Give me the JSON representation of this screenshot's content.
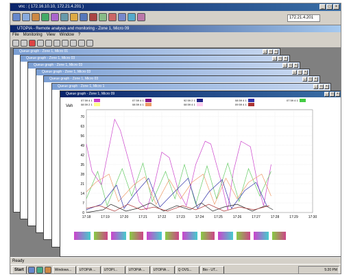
{
  "outer_window": {
    "title": "vnc : ( 172.16.10.10, 172.21.4.201 )",
    "ip": "172.21.4.201"
  },
  "app": {
    "title": "UTOPIA - Remote analysis and monitoring - Zone 1, Micro 09",
    "menu": [
      "File",
      "Monitoring",
      "View",
      "Window",
      "?"
    ]
  },
  "stacked_windows": [
    "Queue graph - Zone 1, Micro 01",
    "Queue graph - Zone 1, Micro 03",
    "Queue graph - Zone 1, Micro 03",
    "Queue graph - Zone 1, Micro 03",
    "Queue graph - Zone 1, Micro 03",
    "Queue graph - Zone 1, Micro 1"
  ],
  "front_window": {
    "title": "Queue graph - Zone 1, Micro 09"
  },
  "legend": [
    {
      "text": "07 59 4 1",
      "color": "#cc44cc"
    },
    {
      "text": "08 59 2 1",
      "color": "#ffff88"
    },
    {
      "text": "07 59 4 1",
      "color": "#881188"
    },
    {
      "text": "08 59 4 1",
      "color": "#ee9966"
    },
    {
      "text": "92 59 2 1",
      "color": "#222288"
    },
    {
      "text": "08 59 4 1",
      "color": "#ffccee"
    },
    {
      "text": "08 59 4 1",
      "color": "#3333aa"
    },
    {
      "text": "09 59 4 1",
      "color": "#aa3333"
    },
    {
      "text": "07 59 4 1",
      "color": "#44cc44"
    }
  ],
  "chart_data": {
    "type": "line",
    "ylabel": "Veh",
    "ylim": [
      0,
      75
    ],
    "yticks": [
      0,
      7,
      14,
      21,
      28,
      35,
      42,
      49,
      56,
      63,
      70
    ],
    "xticks": [
      "17:18",
      "17:19",
      "17:20",
      "17:21",
      "17:22",
      "17:23",
      "17:24",
      "17:25",
      "17:26",
      "17:27",
      "17:28",
      "17:29",
      "17:30"
    ],
    "grid": true,
    "series": [
      {
        "color": "#cc44cc",
        "x": [
          0,
          0.3,
          0.8,
          1.5,
          1.8,
          2.3,
          2.8,
          3.2,
          3.6,
          4,
          4.4,
          4.9,
          5.3,
          5.8,
          6.3,
          6.6,
          7.1,
          7.5,
          7.8,
          8.2,
          8.7,
          9.1,
          9.4,
          9.8
        ],
        "y": [
          50,
          30,
          20,
          68,
          60,
          35,
          8,
          2,
          20,
          44,
          40,
          15,
          5,
          35,
          52,
          50,
          25,
          2,
          30,
          52,
          48,
          20,
          5,
          35
        ]
      },
      {
        "color": "#66cc66",
        "x": [
          0,
          0.6,
          1.1,
          1.9,
          2.4,
          3.0,
          3.5,
          4.2,
          4.7,
          5.2,
          5.8,
          6.4,
          6.9,
          7.5,
          8.1,
          8.6,
          9.2,
          9.8
        ],
        "y": [
          10,
          30,
          5,
          32,
          12,
          36,
          8,
          30,
          10,
          35,
          6,
          34,
          10,
          36,
          8,
          32,
          12,
          30
        ]
      },
      {
        "color": "#ee9966",
        "x": [
          0,
          0.5,
          1.2,
          1.7,
          2.5,
          3.1,
          3.7,
          4.4,
          5.0,
          5.6,
          6.2,
          6.8,
          7.4,
          8.0,
          8.6,
          9.3,
          9.8
        ],
        "y": [
          15,
          22,
          28,
          8,
          20,
          26,
          6,
          24,
          10,
          22,
          28,
          6,
          25,
          10,
          22,
          28,
          12
        ]
      },
      {
        "color": "#3333aa",
        "x": [
          0,
          0.8,
          1.6,
          2.0,
          2.6,
          3.3,
          3.9,
          4.6,
          5.4,
          5.9,
          6.5,
          7.2,
          7.7,
          8.4,
          9.0,
          9.6
        ],
        "y": [
          2,
          6,
          20,
          3,
          14,
          25,
          4,
          14,
          25,
          3,
          15,
          24,
          3,
          16,
          22,
          4
        ]
      },
      {
        "color": "#222222",
        "x": [
          0,
          0.9,
          1.3,
          2.1,
          2.7,
          3.4,
          4.1,
          4.8,
          5.5,
          6.1,
          6.7,
          7.3,
          8.0,
          8.8,
          9.5,
          9.9
        ],
        "y": [
          0,
          2,
          6,
          1,
          3,
          7,
          1,
          5,
          2,
          7,
          1,
          4,
          6,
          1,
          5,
          2
        ]
      },
      {
        "color": "#aa3333",
        "x": [
          0,
          0.7,
          1.5,
          2.2,
          2.9,
          3.6,
          4.3,
          5.1,
          5.8,
          6.5,
          7.3,
          8.1,
          8.9,
          9.7
        ],
        "y": [
          3,
          5,
          1,
          6,
          2,
          4,
          1,
          5,
          2,
          6,
          1,
          4,
          2,
          5
        ]
      }
    ]
  },
  "taskbar": {
    "start": "Start",
    "tasks": [
      "Windows...",
      "UTOPIA ...",
      "UTOPI...",
      "UTOPIA ...",
      "UTOPIA ...",
      "Q OVS...",
      "Bio - UT..."
    ],
    "clock": "5:20 PM"
  },
  "status": "Ready"
}
